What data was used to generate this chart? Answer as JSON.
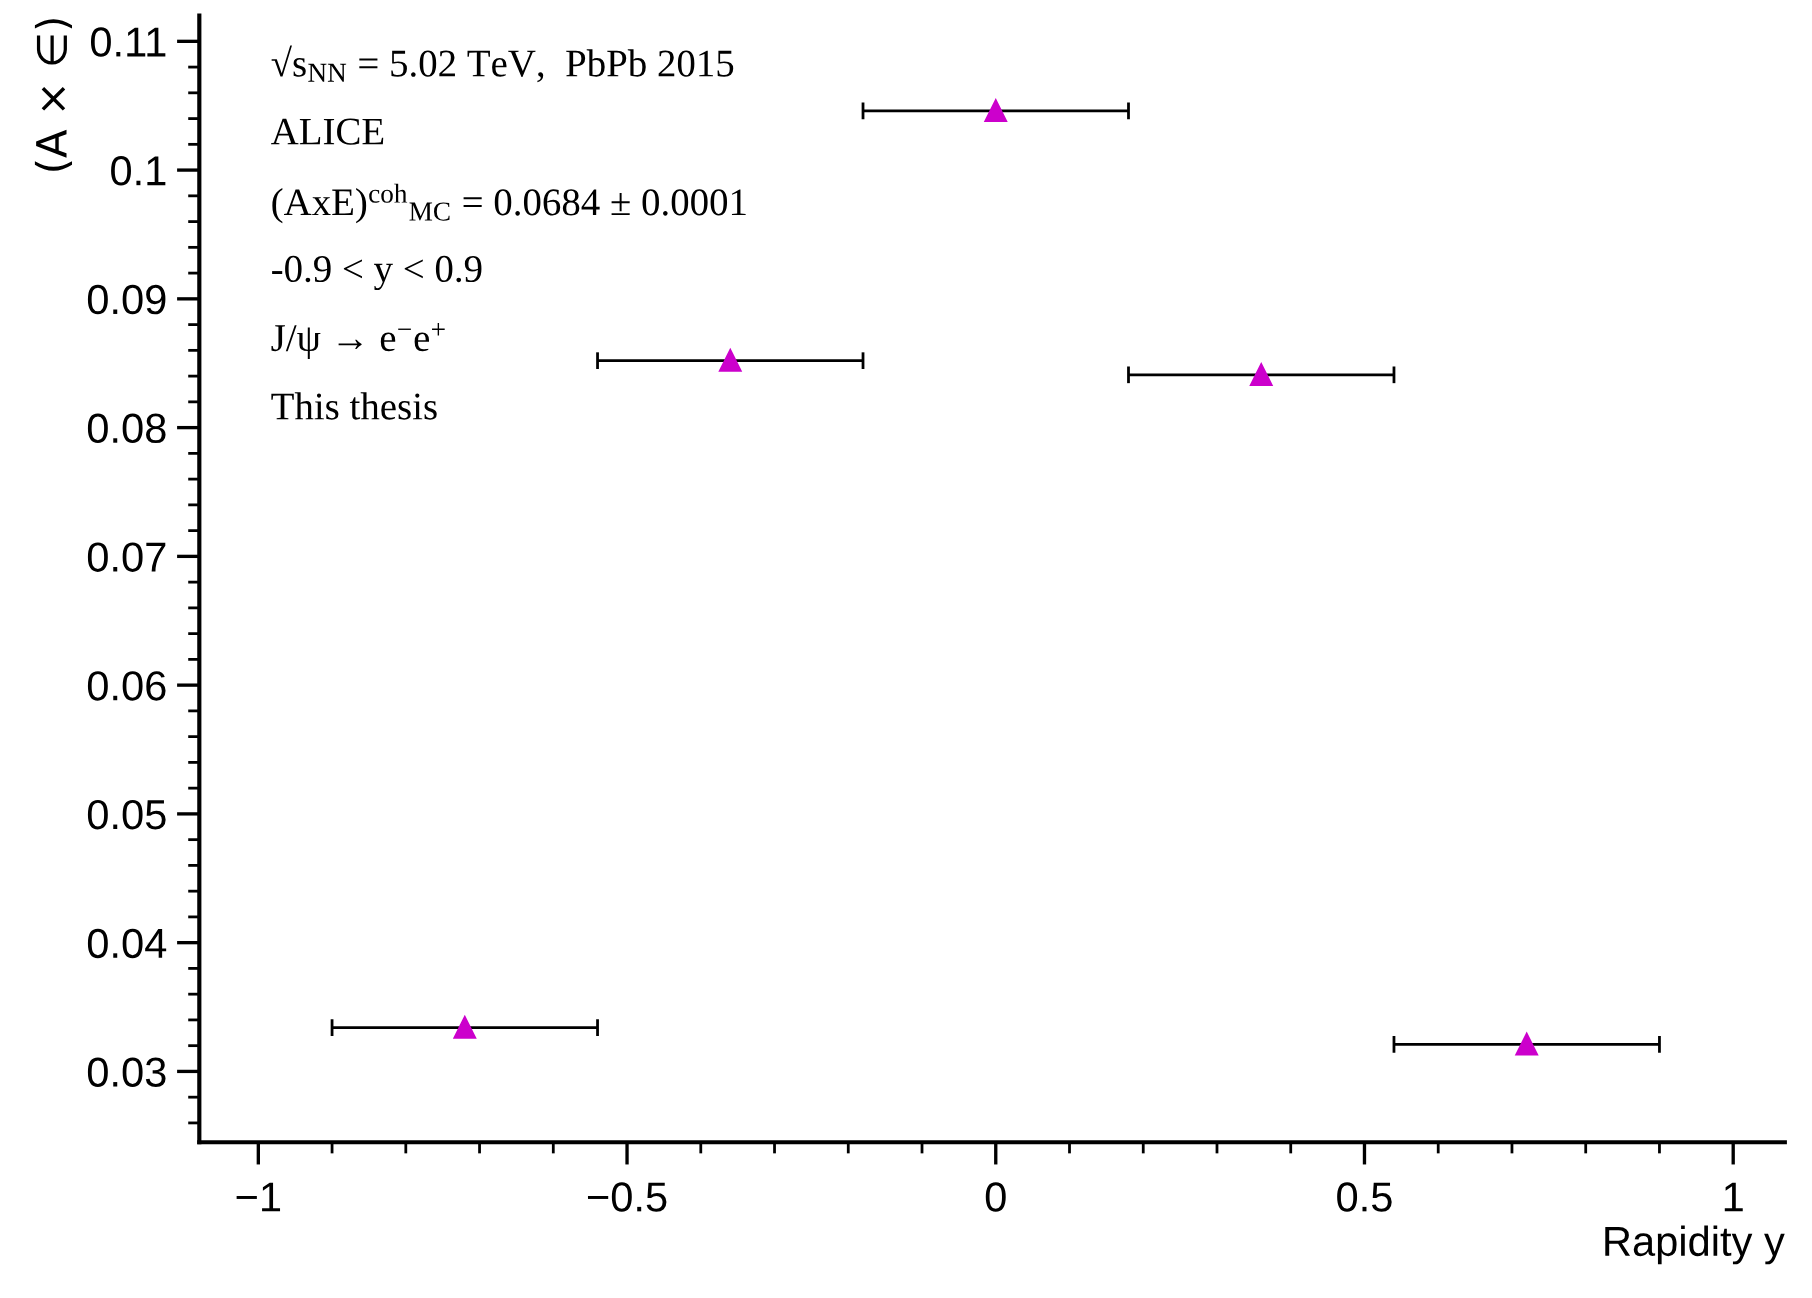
{
  "chart_data": {
    "type": "scatter",
    "xlabel": "Rapidity y",
    "ylabel": "(A × ∈)",
    "x": [
      -0.72,
      -0.36,
      0,
      0.36,
      0.72
    ],
    "series": [
      {
        "color": "#cc00cc",
        "values": [
          0.0334,
          0.0852,
          0.1046,
          0.0841,
          0.0321
        ],
        "xerrors": [
          0.18,
          0.18,
          0.18,
          0.18,
          0.18
        ]
      }
    ],
    "marker": "triangle",
    "xlim": [
      -1.08,
      1.07
    ],
    "ylim": [
      0.0245,
      0.112
    ],
    "xticks": [
      {
        "value": -1,
        "label": "−1"
      },
      {
        "value": -0.9,
        "label": null
      },
      {
        "value": -0.8,
        "label": null
      },
      {
        "value": -0.7,
        "label": null
      },
      {
        "value": -0.6,
        "label": null
      },
      {
        "value": -0.5,
        "label": "−0.5"
      },
      {
        "value": -0.4,
        "label": null
      },
      {
        "value": -0.3,
        "label": null
      },
      {
        "value": -0.2,
        "label": null
      },
      {
        "value": -0.1,
        "label": null
      },
      0,
      {
        "value": 0.1,
        "label": null
      },
      {
        "value": 0.2,
        "label": null
      },
      {
        "value": 0.3,
        "label": null
      },
      {
        "value": 0.4,
        "label": null
      },
      0.5,
      {
        "value": 0.6,
        "label": null
      },
      {
        "value": 0.7,
        "label": null
      },
      {
        "value": 0.8,
        "label": null
      },
      {
        "value": 0.9,
        "label": null
      },
      1
    ],
    "yticks": [
      {
        "value": 0.026,
        "label": null
      },
      {
        "value": 0.028,
        "label": null
      },
      0.03,
      {
        "value": 0.032,
        "label": null
      },
      {
        "value": 0.034,
        "label": null
      },
      {
        "value": 0.036,
        "label": null
      },
      {
        "value": 0.038,
        "label": null
      },
      0.04,
      {
        "value": 0.042,
        "label": null
      },
      {
        "value": 0.044,
        "label": null
      },
      {
        "value": 0.046,
        "label": null
      },
      {
        "value": 0.048,
        "label": null
      },
      0.05,
      {
        "value": 0.052,
        "label": null
      },
      {
        "value": 0.054,
        "label": null
      },
      {
        "value": 0.056,
        "label": null
      },
      {
        "value": 0.058,
        "label": null
      },
      0.06,
      {
        "value": 0.062,
        "label": null
      },
      {
        "value": 0.064,
        "label": null
      },
      {
        "value": 0.066,
        "label": null
      },
      {
        "value": 0.068,
        "label": null
      },
      0.07,
      {
        "value": 0.072,
        "label": null
      },
      {
        "value": 0.074,
        "label": null
      },
      {
        "value": 0.076,
        "label": null
      },
      {
        "value": 0.078,
        "label": null
      },
      0.08,
      {
        "value": 0.082,
        "label": null
      },
      {
        "value": 0.084,
        "label": null
      },
      {
        "value": 0.086,
        "label": null
      },
      {
        "value": 0.088,
        "label": null
      },
      0.09,
      {
        "value": 0.092,
        "label": null
      },
      {
        "value": 0.094,
        "label": null
      },
      {
        "value": 0.096,
        "label": null
      },
      {
        "value": 0.098,
        "label": null
      },
      0.1,
      {
        "value": 0.102,
        "label": null
      },
      {
        "value": 0.104,
        "label": null
      },
      {
        "value": 0.106,
        "label": null
      },
      {
        "value": 0.108,
        "label": null
      },
      0.11
    ],
    "annotations": [
      "√s$_{NN}$ = 5.02 TeV,  PbPb 2015",
      "ALICE",
      "(AxE)$^{coh}$$_{MC}$ = 0.0684 ± 0.0001",
      "-0.9 < y < 0.9",
      "J/ψ → e$^{−}$e$^{+}$",
      "This thesis"
    ],
    "grid": false,
    "legend": false
  }
}
